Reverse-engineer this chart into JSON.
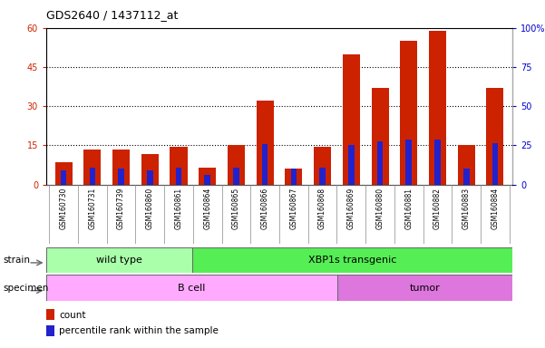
{
  "title": "GDS2640 / 1437112_at",
  "samples": [
    "GSM160730",
    "GSM160731",
    "GSM160739",
    "GSM160860",
    "GSM160861",
    "GSM160864",
    "GSM160865",
    "GSM160866",
    "GSM160867",
    "GSM160868",
    "GSM160869",
    "GSM160880",
    "GSM160881",
    "GSM160882",
    "GSM160883",
    "GSM160884"
  ],
  "counts": [
    8.5,
    13.5,
    13.5,
    11.5,
    14.5,
    6.5,
    15.0,
    32.0,
    6.0,
    14.5,
    50.0,
    37.0,
    55.0,
    59.0,
    15.0,
    37.0
  ],
  "percentiles": [
    9.0,
    11.0,
    10.0,
    9.0,
    11.0,
    6.0,
    11.0,
    26.0,
    10.0,
    11.0,
    25.0,
    27.5,
    28.5,
    28.5,
    10.0,
    26.5
  ],
  "strain_groups": [
    {
      "label": "wild type",
      "start": 0,
      "end": 4,
      "color": "#aaffaa"
    },
    {
      "label": "XBP1s transgenic",
      "start": 5,
      "end": 15,
      "color": "#55ee55"
    }
  ],
  "specimen_groups": [
    {
      "label": "B cell",
      "start": 0,
      "end": 9,
      "color": "#ffaaff"
    },
    {
      "label": "tumor",
      "start": 10,
      "end": 15,
      "color": "#dd77dd"
    }
  ],
  "bar_color": "#cc2200",
  "percentile_color": "#2222cc",
  "ylim_left": [
    0,
    60
  ],
  "ylim_right": [
    0,
    100
  ],
  "yticks_left": [
    0,
    15,
    30,
    45,
    60
  ],
  "yticks_right": [
    0,
    25,
    50,
    75,
    100
  ],
  "ytick_labels_right": [
    "0",
    "25",
    "50",
    "75",
    "100%"
  ],
  "background_color": "#ffffff",
  "plot_bg_color": "#ffffff",
  "xtick_bg_color": "#cccccc",
  "grid_color": "#000000",
  "legend_items": [
    {
      "label": "count",
      "color": "#cc2200"
    },
    {
      "label": "percentile rank within the sample",
      "color": "#2222cc"
    }
  ]
}
